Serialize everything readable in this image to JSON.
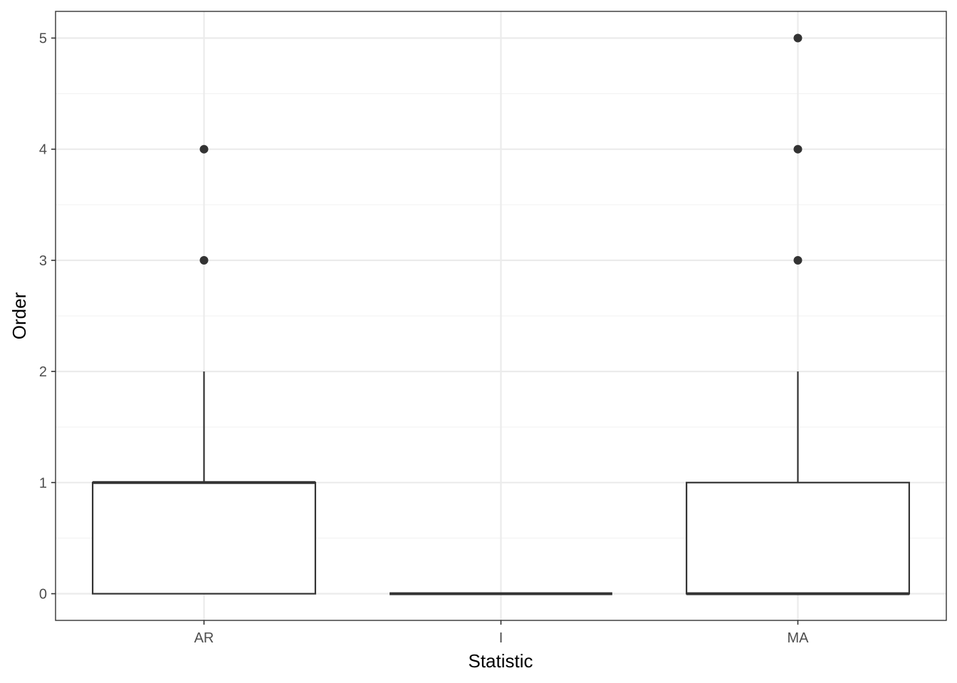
{
  "chart_data": {
    "type": "boxplot",
    "xlabel": "Statistic",
    "ylabel": "Order",
    "categories": [
      "AR",
      "I",
      "MA"
    ],
    "ylim": [
      -0.24,
      5.24
    ],
    "yticks": [
      0,
      1,
      2,
      3,
      4,
      5
    ],
    "grid": true,
    "boxes": [
      {
        "category": "AR",
        "lower_whisker": 0,
        "q1": 0,
        "median": 1,
        "q3": 1,
        "upper_whisker": 2,
        "outliers": [
          3,
          4
        ]
      },
      {
        "category": "I",
        "lower_whisker": 0,
        "q1": 0,
        "median": 0,
        "q3": 0,
        "upper_whisker": 0,
        "outliers": []
      },
      {
        "category": "MA",
        "lower_whisker": 0,
        "q1": 0,
        "median": 0,
        "q3": 1,
        "upper_whisker": 2,
        "outliers": [
          3,
          4,
          5
        ]
      }
    ],
    "colors": {
      "box_stroke": "#333333",
      "grid_major": "#ebebeb",
      "grid_minor": "#f3f3f3",
      "panel_border": "#333333"
    }
  }
}
